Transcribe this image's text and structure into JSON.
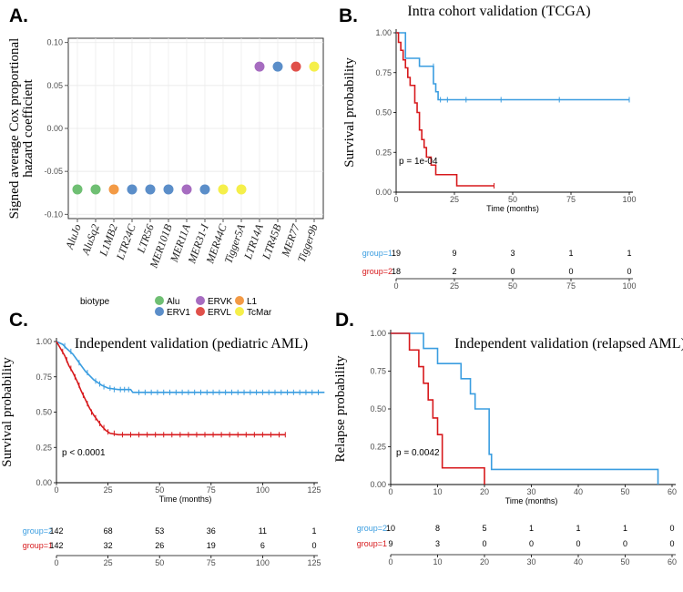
{
  "panels": {
    "a": {
      "letter": "A."
    },
    "b": {
      "letter": "B."
    },
    "c": {
      "letter": "C."
    },
    "d": {
      "letter": "D."
    }
  },
  "chart_data": [
    {
      "id": "a",
      "type": "scatter",
      "ylabel": "Signed average Cox proportional hazard coefficient",
      "ylabel_lines": [
        "Signed average Cox proportional",
        "hazard coefficient"
      ],
      "ylim": [
        -0.105,
        0.105
      ],
      "yticks": [
        0.1,
        0.05,
        0.0,
        -0.05,
        -0.1
      ],
      "ytick_labels": [
        "0.10",
        "0.05",
        "0.00",
        "-0.05",
        "-0.10"
      ],
      "categories": [
        "AluJo",
        "AluSq2",
        "L1MB2",
        "LTR24C",
        "LTR56",
        "MER101B",
        "MER11A",
        "MER31-I",
        "MER44C",
        "Tigger5A",
        "LTR14A",
        "LTR45B",
        "MER77",
        "Tigger9b"
      ],
      "values": [
        -0.071,
        -0.071,
        -0.071,
        -0.071,
        -0.071,
        -0.071,
        -0.071,
        -0.071,
        -0.071,
        -0.071,
        0.072,
        0.072,
        0.072,
        0.072
      ],
      "biotypes": [
        "Alu",
        "Alu",
        "L1",
        "ERV1",
        "ERV1",
        "ERV1",
        "ERVK",
        "ERV1",
        "TcMar",
        "TcMar",
        "ERVK",
        "ERV1",
        "ERVL",
        "TcMar"
      ],
      "legend": {
        "title": "biotype",
        "entries": [
          {
            "name": "Alu",
            "color": "#6fbf73"
          },
          {
            "name": "ERVK",
            "color": "#a66cc0"
          },
          {
            "name": "L1",
            "color": "#f39a45"
          },
          {
            "name": "ERV1",
            "color": "#5b8ec9"
          },
          {
            "name": "ERVL",
            "color": "#e0504a"
          },
          {
            "name": "TcMar",
            "color": "#f5ef4a"
          }
        ]
      }
    },
    {
      "id": "b",
      "type": "line",
      "subtype": "kaplan-meier",
      "title": "Intra cohort validation (TCGA)",
      "ylabel": "Survival probability",
      "xlabel": "Time (months)",
      "xlim": [
        0,
        100
      ],
      "ylim": [
        0,
        1
      ],
      "xticks": [
        0,
        25,
        50,
        75,
        100
      ],
      "yticks": [
        0,
        0.25,
        0.5,
        0.75,
        1
      ],
      "ytick_labels": [
        "0.00",
        "0.25",
        "0.50",
        "0.75",
        "1.00"
      ],
      "pvalue": "p = 1e-04",
      "series": [
        {
          "name": "group=1",
          "color": "#3a9de0",
          "steps": [
            [
              0,
              1
            ],
            [
              4,
              1
            ],
            [
              4,
              0.84
            ],
            [
              10,
              0.84
            ],
            [
              10,
              0.79
            ],
            [
              16,
              0.79
            ],
            [
              16,
              0.68
            ],
            [
              17,
              0.68
            ],
            [
              17,
              0.63
            ],
            [
              18,
              0.63
            ],
            [
              18,
              0.58
            ],
            [
              100,
              0.58
            ]
          ],
          "censor": [
            [
              16,
              0.79
            ],
            [
              19,
              0.58
            ],
            [
              22,
              0.58
            ],
            [
              30,
              0.58
            ],
            [
              45,
              0.58
            ],
            [
              70,
              0.58
            ],
            [
              100,
              0.58
            ]
          ]
        },
        {
          "name": "group=2",
          "color": "#d7191c",
          "steps": [
            [
              0,
              1
            ],
            [
              1,
              1
            ],
            [
              1,
              0.94
            ],
            [
              2,
              0.94
            ],
            [
              2,
              0.89
            ],
            [
              3,
              0.89
            ],
            [
              3,
              0.83
            ],
            [
              4,
              0.83
            ],
            [
              4,
              0.78
            ],
            [
              5,
              0.78
            ],
            [
              5,
              0.72
            ],
            [
              6,
              0.72
            ],
            [
              6,
              0.67
            ],
            [
              8,
              0.67
            ],
            [
              8,
              0.56
            ],
            [
              9,
              0.56
            ],
            [
              9,
              0.5
            ],
            [
              10,
              0.5
            ],
            [
              10,
              0.39
            ],
            [
              11,
              0.39
            ],
            [
              11,
              0.33
            ],
            [
              12,
              0.33
            ],
            [
              12,
              0.28
            ],
            [
              13,
              0.28
            ],
            [
              13,
              0.22
            ],
            [
              15,
              0.22
            ],
            [
              15,
              0.17
            ],
            [
              17,
              0.17
            ],
            [
              17,
              0.11
            ],
            [
              26,
              0.11
            ],
            [
              26,
              0.04
            ],
            [
              42,
              0.04
            ]
          ],
          "censor": [
            [
              42,
              0.04
            ]
          ]
        }
      ],
      "risk_table": {
        "xticks": [
          0,
          25,
          50,
          75,
          100
        ],
        "rows": [
          {
            "label": "group=1",
            "color": "#3a9de0",
            "counts": [
              "19",
              "9",
              "3",
              "1",
              "1"
            ]
          },
          {
            "label": "group=2",
            "color": "#d7191c",
            "counts": [
              "18",
              "2",
              "0",
              "0",
              "0"
            ]
          }
        ]
      }
    },
    {
      "id": "c",
      "type": "line",
      "subtype": "kaplan-meier",
      "title": "Independent validation (pediatric AML)",
      "ylabel": "Survival probability",
      "xlabel": "Time (months)",
      "xlim": [
        0,
        125
      ],
      "ylim": [
        0,
        1
      ],
      "xticks": [
        0,
        25,
        50,
        75,
        100,
        125
      ],
      "yticks": [
        0,
        0.25,
        0.5,
        0.75,
        1
      ],
      "ytick_labels": [
        "0.00",
        "0.25",
        "0.50",
        "0.75",
        "1.00"
      ],
      "pvalue": "p < 0.0001",
      "series": [
        {
          "name": "group=2",
          "color": "#3a9de0",
          "steps": [
            [
              0,
              1
            ],
            [
              3,
              0.98
            ],
            [
              5,
              0.95
            ],
            [
              8,
              0.91
            ],
            [
              10,
              0.87
            ],
            [
              12,
              0.83
            ],
            [
              14,
              0.79
            ],
            [
              16,
              0.76
            ],
            [
              18,
              0.73
            ],
            [
              20,
              0.71
            ],
            [
              22,
              0.69
            ],
            [
              25,
              0.67
            ],
            [
              30,
              0.66
            ],
            [
              36,
              0.66
            ],
            [
              37,
              0.64
            ],
            [
              130,
              0.64
            ]
          ],
          "censor": [
            [
              4,
              0.97
            ],
            [
              7,
              0.93
            ],
            [
              11,
              0.85
            ],
            [
              15,
              0.78
            ],
            [
              19,
              0.72
            ],
            [
              21,
              0.7
            ],
            [
              23,
              0.68
            ],
            [
              26,
              0.67
            ],
            [
              28,
              0.66
            ],
            [
              31,
              0.66
            ],
            [
              33,
              0.66
            ],
            [
              35,
              0.66
            ],
            [
              40,
              0.64
            ],
            [
              43,
              0.64
            ],
            [
              46,
              0.64
            ],
            [
              49,
              0.64
            ],
            [
              52,
              0.64
            ],
            [
              55,
              0.64
            ],
            [
              58,
              0.64
            ],
            [
              61,
              0.64
            ],
            [
              64,
              0.64
            ],
            [
              67,
              0.64
            ],
            [
              70,
              0.64
            ],
            [
              73,
              0.64
            ],
            [
              76,
              0.64
            ],
            [
              79,
              0.64
            ],
            [
              82,
              0.64
            ],
            [
              85,
              0.64
            ],
            [
              88,
              0.64
            ],
            [
              91,
              0.64
            ],
            [
              94,
              0.64
            ],
            [
              97,
              0.64
            ],
            [
              100,
              0.64
            ],
            [
              103,
              0.64
            ],
            [
              106,
              0.64
            ],
            [
              109,
              0.64
            ],
            [
              112,
              0.64
            ],
            [
              115,
              0.64
            ],
            [
              118,
              0.64
            ],
            [
              121,
              0.64
            ],
            [
              124,
              0.64
            ],
            [
              127,
              0.64
            ]
          ]
        },
        {
          "name": "group=1",
          "color": "#d7191c",
          "steps": [
            [
              0,
              1
            ],
            [
              2,
              0.95
            ],
            [
              4,
              0.9
            ],
            [
              6,
              0.83
            ],
            [
              8,
              0.78
            ],
            [
              10,
              0.72
            ],
            [
              12,
              0.65
            ],
            [
              14,
              0.59
            ],
            [
              16,
              0.53
            ],
            [
              18,
              0.48
            ],
            [
              20,
              0.44
            ],
            [
              22,
              0.4
            ],
            [
              24,
              0.37
            ],
            [
              26,
              0.35
            ],
            [
              30,
              0.34
            ],
            [
              111,
              0.34
            ]
          ],
          "censor": [
            [
              3,
              0.93
            ],
            [
              5,
              0.87
            ],
            [
              7,
              0.81
            ],
            [
              9,
              0.75
            ],
            [
              11,
              0.69
            ],
            [
              13,
              0.62
            ],
            [
              15,
              0.56
            ],
            [
              17,
              0.5
            ],
            [
              19,
              0.46
            ],
            [
              21,
              0.42
            ],
            [
              23,
              0.39
            ],
            [
              25,
              0.36
            ],
            [
              28,
              0.35
            ],
            [
              32,
              0.34
            ],
            [
              36,
              0.34
            ],
            [
              40,
              0.34
            ],
            [
              44,
              0.34
            ],
            [
              48,
              0.34
            ],
            [
              52,
              0.34
            ],
            [
              56,
              0.34
            ],
            [
              60,
              0.34
            ],
            [
              64,
              0.34
            ],
            [
              68,
              0.34
            ],
            [
              72,
              0.34
            ],
            [
              76,
              0.34
            ],
            [
              80,
              0.34
            ],
            [
              84,
              0.34
            ],
            [
              88,
              0.34
            ],
            [
              92,
              0.34
            ],
            [
              96,
              0.34
            ],
            [
              100,
              0.34
            ],
            [
              104,
              0.34
            ],
            [
              108,
              0.34
            ],
            [
              111,
              0.34
            ]
          ]
        }
      ],
      "risk_table": {
        "xticks": [
          0,
          25,
          50,
          75,
          100,
          125
        ],
        "rows": [
          {
            "label": "group=2",
            "color": "#3a9de0",
            "counts": [
              "142",
              "68",
              "53",
              "36",
              "11",
              "1"
            ]
          },
          {
            "label": "group=1",
            "color": "#d7191c",
            "counts": [
              "142",
              "32",
              "26",
              "19",
              "6",
              "0"
            ]
          }
        ]
      }
    },
    {
      "id": "d",
      "type": "line",
      "subtype": "kaplan-meier",
      "title": "Independent validation (relapsed AML)",
      "ylabel": "Relapse probability",
      "xlabel": "Time (months)",
      "xlim": [
        0,
        60
      ],
      "ylim": [
        0,
        1
      ],
      "xticks": [
        0,
        10,
        20,
        30,
        40,
        50,
        60
      ],
      "yticks": [
        0,
        0.25,
        0.5,
        0.75,
        1
      ],
      "ytick_labels": [
        "0.00",
        "0.25",
        "0.50",
        "0.75",
        "1.00"
      ],
      "pvalue": "p = 0.0042",
      "series": [
        {
          "name": "group=2",
          "color": "#3a9de0",
          "steps": [
            [
              0,
              1
            ],
            [
              7,
              1
            ],
            [
              7,
              0.9
            ],
            [
              10,
              0.9
            ],
            [
              10,
              0.8
            ],
            [
              15,
              0.8
            ],
            [
              15,
              0.7
            ],
            [
              17,
              0.7
            ],
            [
              17,
              0.6
            ],
            [
              18,
              0.6
            ],
            [
              18,
              0.5
            ],
            [
              21,
              0.5
            ],
            [
              21,
              0.2
            ],
            [
              21.5,
              0.2
            ],
            [
              21.5,
              0.1
            ],
            [
              57,
              0.1
            ],
            [
              57,
              0.0
            ]
          ],
          "censor": []
        },
        {
          "name": "group=1",
          "color": "#d7191c",
          "steps": [
            [
              0,
              1
            ],
            [
              4,
              1
            ],
            [
              4,
              0.89
            ],
            [
              6,
              0.89
            ],
            [
              6,
              0.78
            ],
            [
              7,
              0.78
            ],
            [
              7,
              0.67
            ],
            [
              8,
              0.67
            ],
            [
              8,
              0.56
            ],
            [
              9,
              0.56
            ],
            [
              9,
              0.44
            ],
            [
              10,
              0.44
            ],
            [
              10,
              0.33
            ],
            [
              11,
              0.33
            ],
            [
              11,
              0.11
            ],
            [
              20,
              0.11
            ],
            [
              20,
              0.0
            ]
          ],
          "censor": []
        }
      ],
      "risk_table": {
        "xticks": [
          0,
          10,
          20,
          30,
          40,
          50,
          60
        ],
        "rows": [
          {
            "label": "group=2",
            "color": "#3a9de0",
            "counts": [
              "10",
              "8",
              "5",
              "1",
              "1",
              "1",
              "0"
            ]
          },
          {
            "label": "group=1",
            "color": "#d7191c",
            "counts": [
              "9",
              "3",
              "0",
              "0",
              "0",
              "0",
              "0"
            ]
          }
        ]
      }
    }
  ]
}
